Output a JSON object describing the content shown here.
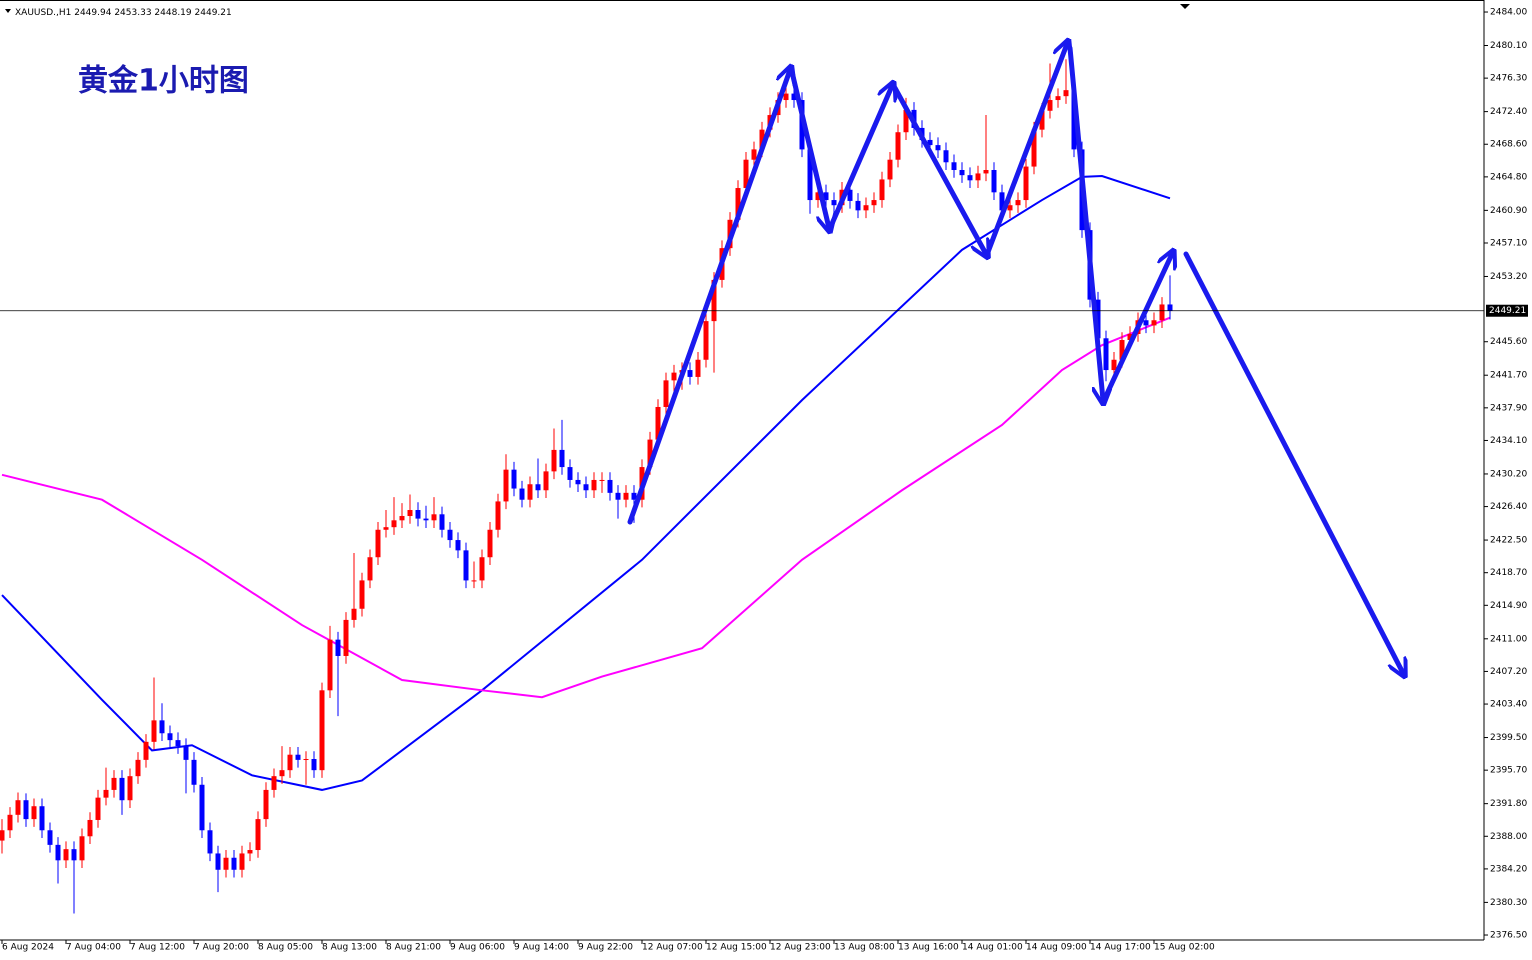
{
  "chart_data": {
    "type": "candlestick",
    "title": "黄金1小时图",
    "symbol": "XAUUSD.,H1",
    "up_color": "#ff0000",
    "down_color": "#0000ff",
    "ylim": [
      2375.92,
      2485.4
    ],
    "yticks": [
      {
        "value": 2484.0,
        "label": "2484.00"
      },
      {
        "value": 2480.1,
        "label": "2480.10"
      },
      {
        "value": 2476.3,
        "label": "2476.30"
      },
      {
        "value": 2472.4,
        "label": "2472.40"
      },
      {
        "value": 2468.6,
        "label": "2468.60"
      },
      {
        "value": 2464.8,
        "label": "2464.80"
      },
      {
        "value": 2460.9,
        "label": "2460.90"
      },
      {
        "value": 2457.1,
        "label": "2457.10"
      },
      {
        "value": 2453.2,
        "label": "2453.20"
      },
      {
        "value": 2445.6,
        "label": "2445.60"
      },
      {
        "value": 2441.7,
        "label": "2441.70"
      },
      {
        "value": 2437.9,
        "label": "2437.90"
      },
      {
        "value": 2434.1,
        "label": "2434.10"
      },
      {
        "value": 2430.2,
        "label": "2430.20"
      },
      {
        "value": 2426.4,
        "label": "2426.40"
      },
      {
        "value": 2422.5,
        "label": "2422.50"
      },
      {
        "value": 2418.7,
        "label": "2418.70"
      },
      {
        "value": 2414.9,
        "label": "2414.90"
      },
      {
        "value": 2411.0,
        "label": "2411.00"
      },
      {
        "value": 2407.2,
        "label": "2407.20"
      },
      {
        "value": 2403.4,
        "label": "2403.40"
      },
      {
        "value": 2399.5,
        "label": "2399.50"
      },
      {
        "value": 2395.7,
        "label": "2395.70"
      },
      {
        "value": 2391.8,
        "label": "2391.80"
      },
      {
        "value": 2388.0,
        "label": "2388.00"
      },
      {
        "value": 2384.2,
        "label": "2384.20"
      },
      {
        "value": 2380.3,
        "label": "2380.30"
      },
      {
        "value": 2376.5,
        "label": "2376.50"
      }
    ],
    "x_labels": [
      {
        "index": 0,
        "label": "6 Aug 2024"
      },
      {
        "index": 8,
        "label": "7 Aug 04:00"
      },
      {
        "index": 16,
        "label": "7 Aug 12:00"
      },
      {
        "index": 24,
        "label": "7 Aug 20:00"
      },
      {
        "index": 32,
        "label": "8 Aug 05:00"
      },
      {
        "index": 40,
        "label": "8 Aug 13:00"
      },
      {
        "index": 48,
        "label": "8 Aug 21:00"
      },
      {
        "index": 56,
        "label": "9 Aug 06:00"
      },
      {
        "index": 64,
        "label": "9 Aug 14:00"
      },
      {
        "index": 72,
        "label": "9 Aug 22:00"
      },
      {
        "index": 80,
        "label": "12 Aug 07:00"
      },
      {
        "index": 88,
        "label": "12 Aug 15:00"
      },
      {
        "index": 96,
        "label": "12 Aug 23:00"
      },
      {
        "index": 104,
        "label": "13 Aug 08:00"
      },
      {
        "index": 112,
        "label": "13 Aug 16:00"
      },
      {
        "index": 120,
        "label": "14 Aug 01:00"
      },
      {
        "index": 128,
        "label": "14 Aug 09:00"
      },
      {
        "index": 136,
        "label": "14 Aug 17:00"
      },
      {
        "index": 144,
        "label": "15 Aug 02:00"
      }
    ],
    "ohlc": [
      [
        2387.5,
        2390.0,
        2386.0,
        2388.7
      ],
      [
        2388.7,
        2391.4,
        2387.8,
        2390.5
      ],
      [
        2390.5,
        2393.1,
        2389.6,
        2392.2
      ],
      [
        2392.2,
        2393.0,
        2389.1,
        2390.0
      ],
      [
        2390.0,
        2392.4,
        2389.1,
        2391.5
      ],
      [
        2391.5,
        2392.4,
        2387.8,
        2388.7
      ],
      [
        2388.7,
        2389.6,
        2386.1,
        2387.0
      ],
      [
        2387.0,
        2387.9,
        2382.5,
        2385.2
      ],
      [
        2385.2,
        2387.4,
        2384.3,
        2386.5
      ],
      [
        2386.5,
        2387.4,
        2379.0,
        2385.2
      ],
      [
        2385.2,
        2388.9,
        2384.3,
        2388.0
      ],
      [
        2388.0,
        2390.8,
        2387.1,
        2389.9
      ],
      [
        2389.9,
        2393.4,
        2389.0,
        2392.5
      ],
      [
        2392.5,
        2396.0,
        2391.6,
        2393.4
      ],
      [
        2393.4,
        2395.7,
        2392.5,
        2394.8
      ],
      [
        2394.8,
        2395.7,
        2390.5,
        2392.2
      ],
      [
        2392.2,
        2395.9,
        2391.3,
        2395.0
      ],
      [
        2395.0,
        2397.8,
        2394.1,
        2396.9
      ],
      [
        2396.9,
        2399.9,
        2396.0,
        2399.0
      ],
      [
        2399.0,
        2406.5,
        2398.1,
        2401.5
      ],
      [
        2401.5,
        2403.5,
        2399.1,
        2400.0
      ],
      [
        2400.0,
        2400.9,
        2398.3,
        2399.2
      ],
      [
        2399.2,
        2400.1,
        2397.6,
        2398.5
      ],
      [
        2398.5,
        2399.4,
        2393.0,
        2396.9
      ],
      [
        2396.9,
        2397.8,
        2393.1,
        2394.0
      ],
      [
        2394.0,
        2394.9,
        2387.8,
        2388.7
      ],
      [
        2388.7,
        2389.6,
        2385.1,
        2386.0
      ],
      [
        2386.0,
        2386.9,
        2381.5,
        2384.1
      ],
      [
        2384.1,
        2386.4,
        2383.2,
        2385.5
      ],
      [
        2385.5,
        2386.4,
        2383.2,
        2384.1
      ],
      [
        2384.1,
        2386.9,
        2383.2,
        2386.0
      ],
      [
        2386.0,
        2387.3,
        2385.1,
        2386.4
      ],
      [
        2386.4,
        2390.9,
        2385.5,
        2390.0
      ],
      [
        2390.0,
        2394.3,
        2389.1,
        2393.4
      ],
      [
        2393.4,
        2395.9,
        2392.5,
        2395.0
      ],
      [
        2395.0,
        2398.5,
        2394.1,
        2395.7
      ],
      [
        2395.7,
        2398.4,
        2394.8,
        2397.5
      ],
      [
        2397.5,
        2398.4,
        2396.0,
        2396.9
      ],
      [
        2396.9,
        2397.9,
        2394.0,
        2397.0
      ],
      [
        2397.0,
        2397.9,
        2394.8,
        2395.7
      ],
      [
        2395.7,
        2405.9,
        2394.8,
        2405.0
      ],
      [
        2405.0,
        2412.5,
        2404.1,
        2410.9
      ],
      [
        2410.9,
        2411.8,
        2402.0,
        2409.0
      ],
      [
        2409.0,
        2414.1,
        2408.1,
        2413.2
      ],
      [
        2413.2,
        2421.0,
        2412.3,
        2414.5
      ],
      [
        2414.5,
        2418.7,
        2413.6,
        2417.8
      ],
      [
        2417.8,
        2421.4,
        2416.9,
        2420.5
      ],
      [
        2420.5,
        2424.6,
        2419.6,
        2423.7
      ],
      [
        2423.7,
        2426.0,
        2422.8,
        2424.0
      ],
      [
        2424.0,
        2427.5,
        2423.1,
        2424.8
      ],
      [
        2424.8,
        2426.8,
        2423.9,
        2425.3
      ],
      [
        2425.3,
        2427.8,
        2424.4,
        2426.0
      ],
      [
        2426.0,
        2426.9,
        2424.1,
        2425.0
      ],
      [
        2425.0,
        2426.5,
        2423.9,
        2424.8
      ],
      [
        2424.8,
        2427.5,
        2423.9,
        2425.5
      ],
      [
        2425.5,
        2426.4,
        2422.8,
        2423.7
      ],
      [
        2423.7,
        2424.6,
        2421.6,
        2422.5
      ],
      [
        2422.5,
        2423.4,
        2420.4,
        2421.3
      ],
      [
        2421.3,
        2422.2,
        2416.9,
        2417.8
      ],
      [
        2417.8,
        2420.0,
        2416.9,
        2417.8
      ],
      [
        2417.8,
        2421.4,
        2416.9,
        2420.5
      ],
      [
        2420.5,
        2424.6,
        2419.6,
        2423.7
      ],
      [
        2423.7,
        2427.9,
        2422.8,
        2427.0
      ],
      [
        2427.0,
        2432.5,
        2426.1,
        2430.7
      ],
      [
        2430.7,
        2431.6,
        2427.6,
        2428.5
      ],
      [
        2428.5,
        2429.4,
        2426.3,
        2427.2
      ],
      [
        2427.2,
        2429.9,
        2426.3,
        2429.0
      ],
      [
        2429.0,
        2432.0,
        2427.4,
        2428.3
      ],
      [
        2428.3,
        2431.4,
        2427.4,
        2430.5
      ],
      [
        2430.5,
        2435.5,
        2429.6,
        2433.0
      ],
      [
        2433.0,
        2436.5,
        2430.1,
        2431.0
      ],
      [
        2431.0,
        2431.9,
        2428.6,
        2429.5
      ],
      [
        2429.5,
        2430.4,
        2428.1,
        2429.0
      ],
      [
        2429.0,
        2429.9,
        2427.4,
        2428.3
      ],
      [
        2428.3,
        2430.4,
        2427.4,
        2429.5
      ],
      [
        2429.5,
        2430.4,
        2428.0,
        2429.5
      ],
      [
        2429.5,
        2430.4,
        2427.1,
        2428.0
      ],
      [
        2428.0,
        2428.9,
        2425.0,
        2427.2
      ],
      [
        2427.2,
        2428.9,
        2426.3,
        2428.0
      ],
      [
        2428.0,
        2428.9,
        2424.5,
        2427.2
      ],
      [
        2427.2,
        2431.9,
        2426.3,
        2431.0
      ],
      [
        2431.0,
        2435.1,
        2430.1,
        2434.2
      ],
      [
        2434.2,
        2438.9,
        2433.3,
        2438.0
      ],
      [
        2438.0,
        2442.0,
        2437.1,
        2441.1
      ],
      [
        2441.1,
        2442.9,
        2439.5,
        2442.0
      ],
      [
        2442.0,
        2443.2,
        2440.0,
        2442.3
      ],
      [
        2442.3,
        2443.2,
        2440.6,
        2441.5
      ],
      [
        2441.5,
        2444.4,
        2440.6,
        2443.5
      ],
      [
        2443.5,
        2448.9,
        2442.6,
        2448.0
      ],
      [
        2448.0,
        2453.7,
        2442.0,
        2452.8
      ],
      [
        2452.8,
        2457.4,
        2451.9,
        2456.5
      ],
      [
        2456.5,
        2460.7,
        2455.6,
        2459.8
      ],
      [
        2459.8,
        2464.4,
        2458.9,
        2463.5
      ],
      [
        2463.5,
        2467.7,
        2462.6,
        2466.8
      ],
      [
        2466.8,
        2468.9,
        2465.9,
        2468.0
      ],
      [
        2468.0,
        2471.2,
        2467.1,
        2470.3
      ],
      [
        2470.3,
        2472.9,
        2469.4,
        2472.0
      ],
      [
        2472.0,
        2474.65,
        2471.1,
        2473.75
      ],
      [
        2473.75,
        2476.0,
        2472.85,
        2474.5
      ],
      [
        2474.5,
        2475.4,
        2472.85,
        2473.75
      ],
      [
        2473.75,
        2474.65,
        2467.1,
        2468.0
      ],
      [
        2468.0,
        2468.9,
        2460.5,
        2462.1
      ],
      [
        2462.1,
        2463.9,
        2461.2,
        2463.0
      ],
      [
        2463.0,
        2463.9,
        2460.0,
        2462.1
      ],
      [
        2462.1,
        2463.0,
        2460.6,
        2461.5
      ],
      [
        2461.5,
        2464.2,
        2460.6,
        2463.3
      ],
      [
        2463.3,
        2464.2,
        2461.1,
        2462.0
      ],
      [
        2462.0,
        2462.9,
        2460.0,
        2460.9
      ],
      [
        2460.9,
        2462.4,
        2460.0,
        2461.5
      ],
      [
        2461.5,
        2463.0,
        2460.6,
        2462.1
      ],
      [
        2462.1,
        2465.4,
        2461.2,
        2464.5
      ],
      [
        2464.5,
        2467.7,
        2463.6,
        2466.8
      ],
      [
        2466.8,
        2470.9,
        2465.9,
        2470.0
      ],
      [
        2470.0,
        2474.0,
        2469.1,
        2472.6
      ],
      [
        2472.6,
        2473.5,
        2469.6,
        2470.5
      ],
      [
        2470.5,
        2471.4,
        2468.2,
        2469.1
      ],
      [
        2469.1,
        2470.0,
        2467.6,
        2468.5
      ],
      [
        2468.5,
        2469.4,
        2467.0,
        2467.9
      ],
      [
        2467.9,
        2468.8,
        2465.6,
        2466.5
      ],
      [
        2466.5,
        2467.4,
        2464.7,
        2465.6
      ],
      [
        2465.6,
        2466.5,
        2464.1,
        2465.0
      ],
      [
        2465.0,
        2465.9,
        2463.5,
        2464.4
      ],
      [
        2464.4,
        2466.1,
        2463.5,
        2465.2
      ],
      [
        2465.2,
        2472.0,
        2464.3,
        2465.6
      ],
      [
        2465.6,
        2466.5,
        2462.1,
        2463.0
      ],
      [
        2463.0,
        2463.9,
        2460.0,
        2460.9
      ],
      [
        2460.9,
        2462.4,
        2460.0,
        2461.5
      ],
      [
        2461.5,
        2463.0,
        2460.6,
        2462.1
      ],
      [
        2462.1,
        2466.9,
        2461.2,
        2466.0
      ],
      [
        2466.0,
        2471.2,
        2465.1,
        2470.3
      ],
      [
        2470.3,
        2473.4,
        2469.4,
        2472.5
      ],
      [
        2472.5,
        2478.0,
        2471.6,
        2473.75
      ],
      [
        2473.75,
        2475.1,
        2472.85,
        2474.2
      ],
      [
        2474.2,
        2478.5,
        2473.3,
        2474.9
      ],
      [
        2474.9,
        2475.8,
        2467.1,
        2468.0
      ],
      [
        2468.0,
        2468.9,
        2457.7,
        2458.6
      ],
      [
        2458.6,
        2459.5,
        2449.6,
        2450.5
      ],
      [
        2450.5,
        2451.4,
        2445.1,
        2446.0
      ],
      [
        2446.0,
        2446.9,
        2441.0,
        2442.3
      ],
      [
        2442.3,
        2444.4,
        2441.4,
        2443.5
      ],
      [
        2443.5,
        2446.7,
        2442.6,
        2445.8
      ],
      [
        2445.8,
        2447.4,
        2444.9,
        2446.5
      ],
      [
        2446.5,
        2449.0,
        2445.6,
        2448.1
      ],
      [
        2448.1,
        2449.0,
        2446.6,
        2447.5
      ],
      [
        2447.5,
        2449.0,
        2446.6,
        2448.1
      ],
      [
        2448.1,
        2450.8,
        2447.2,
        2449.94
      ],
      [
        2449.94,
        2453.33,
        2448.19,
        2449.21
      ]
    ],
    "ma_lines": [
      {
        "color": "#0000ff",
        "x": [
          0,
          12.5,
          18.75,
          23.75,
          31.25,
          40,
          45,
          60,
          80,
          100,
          120,
          130,
          135,
          137.5,
          146
        ],
        "values": [
          2416.1,
          2403.9,
          2398.0,
          2398.6,
          2395.1,
          2393.4,
          2394.5,
          2405.0,
          2420.2,
          2438.8,
          2456.3,
          2462.1,
          2464.8,
          2464.9,
          2462.3
        ]
      },
      {
        "color": "#ff00ff",
        "x": [
          0,
          12.5,
          25,
          37.5,
          50,
          60,
          67.5,
          75,
          87.5,
          100,
          112.5,
          125,
          132.5,
          137.5,
          146
        ],
        "values": [
          2430.1,
          2427.2,
          2420.2,
          2412.6,
          2406.2,
          2405.0,
          2404.2,
          2406.6,
          2409.9,
          2420.2,
          2428.3,
          2435.9,
          2442.3,
          2445.2,
          2448.4
        ]
      }
    ]
  }
}
